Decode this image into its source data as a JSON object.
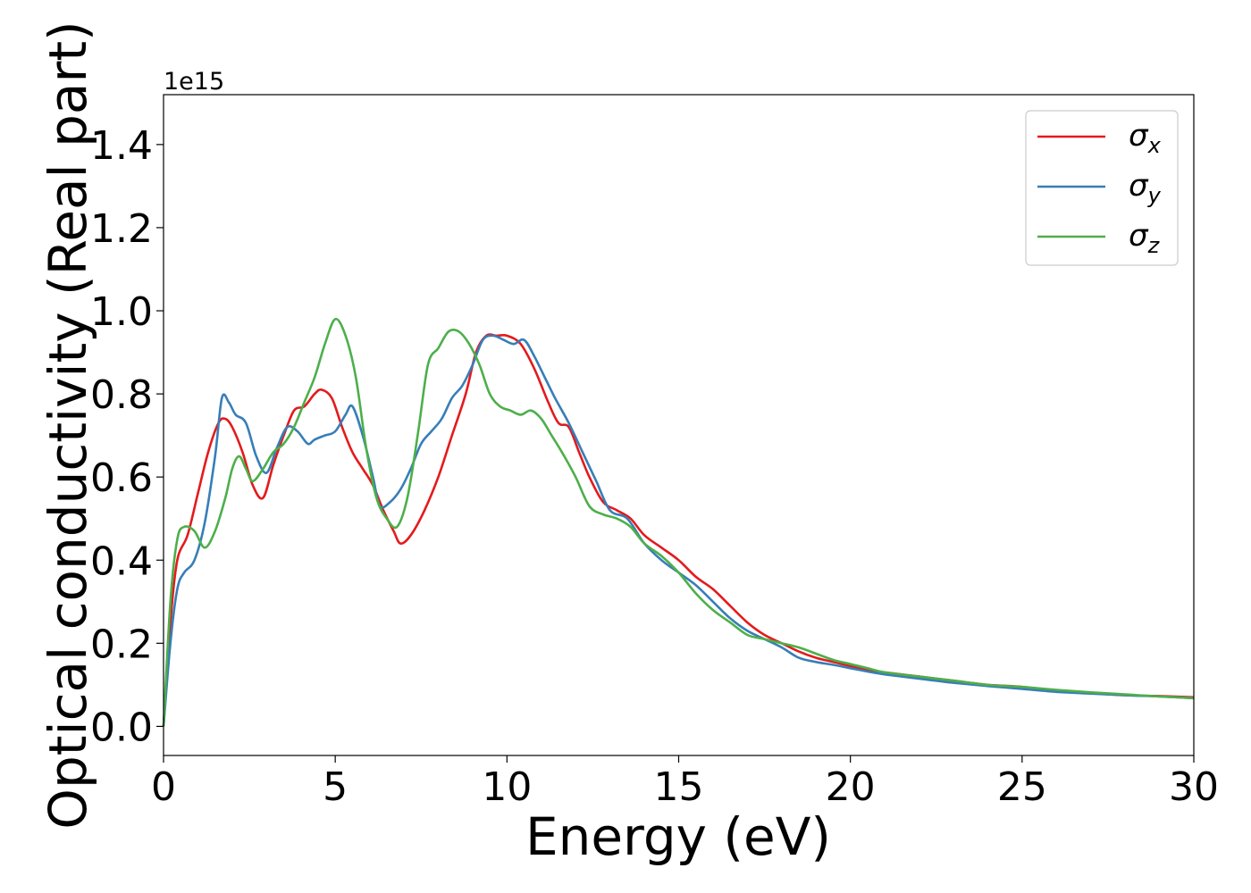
{
  "chart_data": {
    "type": "line",
    "xlabel": "Energy (eV)",
    "ylabel": "Optical conductivity (Real part)",
    "y_offset_label": "1e15",
    "xlim": [
      0,
      30
    ],
    "ylim": [
      -0.07,
      1.52
    ],
    "xticks": [
      0,
      5,
      10,
      15,
      20,
      25,
      30
    ],
    "xtick_labels": [
      "0",
      "5",
      "10",
      "15",
      "20",
      "25",
      "30"
    ],
    "yticks": [
      0.0,
      0.2,
      0.4,
      0.6,
      0.8,
      1.0,
      1.2,
      1.4
    ],
    "ytick_labels": [
      "0.0",
      "0.2",
      "0.4",
      "0.6",
      "0.8",
      "1.0",
      "1.2",
      "1.4"
    ],
    "grid": false,
    "legend_position": "top-right",
    "series": [
      {
        "name": "σx",
        "symbol": "σ",
        "subscript": "x",
        "color": "#e41a1c",
        "x": [
          0,
          0.2,
          0.4,
          0.7,
          1.0,
          1.3,
          1.6,
          1.8,
          2.0,
          2.3,
          2.6,
          2.9,
          3.2,
          3.5,
          3.8,
          4.1,
          4.4,
          4.6,
          4.9,
          5.2,
          5.5,
          5.8,
          6.1,
          6.4,
          6.7,
          6.9,
          7.2,
          7.6,
          8.0,
          8.4,
          8.8,
          9.1,
          9.4,
          9.7,
          10.0,
          10.4,
          10.8,
          11.2,
          11.5,
          11.8,
          12.1,
          12.4,
          12.8,
          13.2,
          13.6,
          14.0,
          14.5,
          15.0,
          15.5,
          16.0,
          16.5,
          17.0,
          17.5,
          18.0,
          18.5,
          19.0,
          19.5,
          20.0,
          20.5,
          21.0,
          22.0,
          23.0,
          24.0,
          25.0,
          26.0,
          27.0,
          28.0,
          29.0,
          30.0
        ],
        "y": [
          0.0,
          0.25,
          0.4,
          0.46,
          0.56,
          0.66,
          0.73,
          0.74,
          0.72,
          0.66,
          0.58,
          0.55,
          0.63,
          0.7,
          0.76,
          0.77,
          0.8,
          0.81,
          0.79,
          0.72,
          0.66,
          0.62,
          0.58,
          0.52,
          0.47,
          0.44,
          0.46,
          0.52,
          0.6,
          0.7,
          0.8,
          0.9,
          0.94,
          0.94,
          0.94,
          0.92,
          0.86,
          0.78,
          0.73,
          0.72,
          0.66,
          0.6,
          0.54,
          0.52,
          0.5,
          0.46,
          0.43,
          0.4,
          0.36,
          0.33,
          0.29,
          0.25,
          0.22,
          0.2,
          0.18,
          0.165,
          0.155,
          0.145,
          0.135,
          0.13,
          0.12,
          0.11,
          0.1,
          0.095,
          0.085,
          0.08,
          0.075,
          0.073,
          0.07
        ]
      },
      {
        "name": "σy",
        "symbol": "σ",
        "subscript": "y",
        "color": "#377eb8",
        "x": [
          0,
          0.2,
          0.4,
          0.6,
          0.9,
          1.2,
          1.5,
          1.7,
          1.9,
          2.1,
          2.4,
          2.7,
          3.0,
          3.3,
          3.6,
          3.9,
          4.2,
          4.4,
          4.7,
          5.0,
          5.3,
          5.5,
          5.8,
          6.1,
          6.3,
          6.6,
          6.9,
          7.2,
          7.5,
          7.8,
          8.1,
          8.4,
          8.7,
          9.0,
          9.3,
          9.6,
          9.9,
          10.2,
          10.5,
          10.8,
          11.1,
          11.4,
          11.8,
          12.2,
          12.6,
          13.0,
          13.5,
          14.0,
          14.5,
          15.0,
          15.5,
          16.0,
          16.5,
          17.0,
          17.5,
          18.0,
          18.5,
          19.0,
          19.5,
          20.0,
          20.5,
          21.0,
          22.0,
          23.0,
          24.0,
          25.0,
          26.0,
          27.0,
          28.0,
          29.0,
          30.0
        ],
        "y": [
          0.0,
          0.2,
          0.33,
          0.37,
          0.4,
          0.49,
          0.65,
          0.79,
          0.78,
          0.75,
          0.73,
          0.65,
          0.61,
          0.67,
          0.72,
          0.71,
          0.68,
          0.69,
          0.7,
          0.71,
          0.75,
          0.77,
          0.7,
          0.6,
          0.53,
          0.54,
          0.57,
          0.62,
          0.68,
          0.71,
          0.74,
          0.79,
          0.82,
          0.87,
          0.93,
          0.94,
          0.93,
          0.92,
          0.93,
          0.89,
          0.84,
          0.79,
          0.73,
          0.66,
          0.59,
          0.52,
          0.5,
          0.44,
          0.4,
          0.37,
          0.34,
          0.3,
          0.26,
          0.23,
          0.21,
          0.19,
          0.165,
          0.155,
          0.148,
          0.14,
          0.132,
          0.125,
          0.115,
          0.105,
          0.097,
          0.09,
          0.083,
          0.079,
          0.075,
          0.072,
          0.068
        ]
      },
      {
        "name": "σz",
        "symbol": "σ",
        "subscript": "z",
        "color": "#4daf4a",
        "x": [
          0,
          0.2,
          0.4,
          0.6,
          0.9,
          1.2,
          1.5,
          1.8,
          2.0,
          2.2,
          2.4,
          2.6,
          2.9,
          3.2,
          3.5,
          3.8,
          4.1,
          4.4,
          4.7,
          5.0,
          5.3,
          5.6,
          5.9,
          6.2,
          6.5,
          6.8,
          7.1,
          7.4,
          7.7,
          8.0,
          8.3,
          8.6,
          8.9,
          9.2,
          9.5,
          9.8,
          10.1,
          10.4,
          10.7,
          11.0,
          11.3,
          11.6,
          12.0,
          12.4,
          12.8,
          13.2,
          13.6,
          14.0,
          14.5,
          15.0,
          15.5,
          16.0,
          16.5,
          17.0,
          17.5,
          18.0,
          18.5,
          19.0,
          19.5,
          20.0,
          20.5,
          21.0,
          22.0,
          23.0,
          24.0,
          25.0,
          26.0,
          27.0,
          28.0,
          29.0,
          30.0
        ],
        "y": [
          0.0,
          0.3,
          0.45,
          0.48,
          0.47,
          0.43,
          0.47,
          0.55,
          0.62,
          0.65,
          0.62,
          0.59,
          0.62,
          0.66,
          0.68,
          0.72,
          0.78,
          0.84,
          0.92,
          0.98,
          0.94,
          0.84,
          0.67,
          0.55,
          0.5,
          0.48,
          0.55,
          0.7,
          0.87,
          0.91,
          0.95,
          0.95,
          0.92,
          0.87,
          0.8,
          0.77,
          0.76,
          0.75,
          0.76,
          0.74,
          0.7,
          0.66,
          0.6,
          0.53,
          0.51,
          0.5,
          0.48,
          0.44,
          0.41,
          0.37,
          0.32,
          0.28,
          0.25,
          0.22,
          0.21,
          0.2,
          0.19,
          0.175,
          0.16,
          0.15,
          0.14,
          0.13,
          0.12,
          0.11,
          0.1,
          0.095,
          0.088,
          0.082,
          0.077,
          0.072,
          0.068
        ]
      }
    ]
  }
}
